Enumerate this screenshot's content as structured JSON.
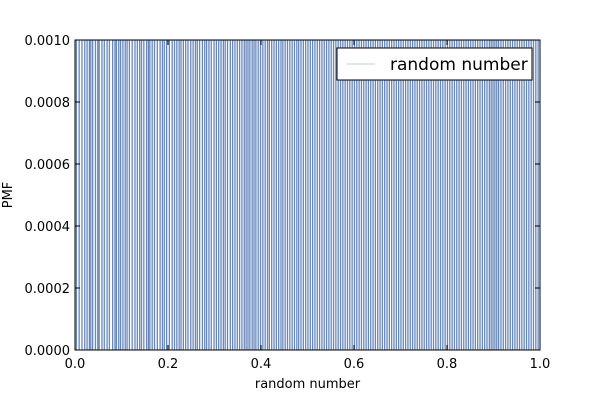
{
  "chart_data": {
    "type": "bar",
    "description_of_values": "PMF of uniformly distributed random numbers; each distinct value has probability 0.001, drawn as thin vertical lines.",
    "xlabel": "random number",
    "ylabel": "PMF",
    "xlim": [
      0.0,
      1.0
    ],
    "ylim": [
      0.0,
      0.001
    ],
    "xticks": [
      0.0,
      0.2,
      0.4,
      0.6,
      0.8,
      1.0
    ],
    "xtick_labels": [
      "0.0",
      "0.2",
      "0.4",
      "0.6",
      "0.8",
      "1.0"
    ],
    "yticks": [
      0.0,
      0.0002,
      0.0004,
      0.0006,
      0.0008,
      0.001
    ],
    "ytick_labels": [
      "0.0000",
      "0.0002",
      "0.0004",
      "0.0006",
      "0.0008",
      "0.0010"
    ],
    "grid": false,
    "legend": {
      "position": "top-right",
      "entries": [
        "random number"
      ]
    },
    "series": [
      {
        "name": "random number",
        "color": "#4c72b0",
        "pmf_value": 0.001,
        "x": [
          0.003,
          0.009,
          0.015,
          0.021,
          0.026,
          0.031,
          0.034,
          0.038,
          0.044,
          0.049,
          0.052,
          0.058,
          0.063,
          0.069,
          0.074,
          0.081,
          0.086,
          0.089,
          0.094,
          0.098,
          0.103,
          0.108,
          0.112,
          0.117,
          0.123,
          0.129,
          0.134,
          0.139,
          0.143,
          0.148,
          0.154,
          0.158,
          0.161,
          0.166,
          0.171,
          0.177,
          0.183,
          0.188,
          0.192,
          0.197,
          0.203,
          0.209,
          0.214,
          0.219,
          0.224,
          0.228,
          0.233,
          0.238,
          0.243,
          0.249,
          0.254,
          0.259,
          0.263,
          0.268,
          0.274,
          0.279,
          0.283,
          0.288,
          0.293,
          0.299,
          0.304,
          0.309,
          0.314,
          0.319,
          0.323,
          0.328,
          0.334,
          0.339,
          0.344,
          0.349,
          0.354,
          0.359,
          0.364,
          0.368,
          0.372,
          0.376,
          0.381,
          0.385,
          0.389,
          0.394,
          0.399,
          0.404,
          0.409,
          0.414,
          0.418,
          0.423,
          0.428,
          0.433,
          0.438,
          0.443,
          0.447,
          0.452,
          0.457,
          0.462,
          0.467,
          0.472,
          0.477,
          0.481,
          0.486,
          0.491,
          0.496,
          0.501,
          0.506,
          0.511,
          0.516,
          0.521,
          0.526,
          0.531,
          0.536,
          0.541,
          0.546,
          0.551,
          0.556,
          0.561,
          0.566,
          0.571,
          0.576,
          0.581,
          0.586,
          0.591,
          0.596,
          0.601,
          0.606,
          0.611,
          0.616,
          0.621,
          0.626,
          0.631,
          0.636,
          0.641,
          0.646,
          0.651,
          0.656,
          0.661,
          0.666,
          0.671,
          0.676,
          0.681,
          0.686,
          0.691,
          0.696,
          0.701,
          0.706,
          0.711,
          0.716,
          0.721,
          0.726,
          0.731,
          0.736,
          0.741,
          0.746,
          0.751,
          0.756,
          0.761,
          0.766,
          0.771,
          0.776,
          0.781,
          0.786,
          0.791,
          0.796,
          0.801,
          0.806,
          0.811,
          0.816,
          0.821,
          0.826,
          0.831,
          0.836,
          0.841,
          0.846,
          0.851,
          0.856,
          0.861,
          0.866,
          0.871,
          0.876,
          0.881,
          0.886,
          0.891,
          0.895,
          0.899,
          0.903,
          0.907,
          0.911,
          0.916,
          0.921,
          0.926,
          0.931,
          0.936,
          0.941,
          0.946,
          0.951,
          0.956,
          0.961,
          0.966,
          0.971,
          0.976,
          0.981,
          0.986,
          0.991,
          0.996
        ]
      }
    ]
  }
}
